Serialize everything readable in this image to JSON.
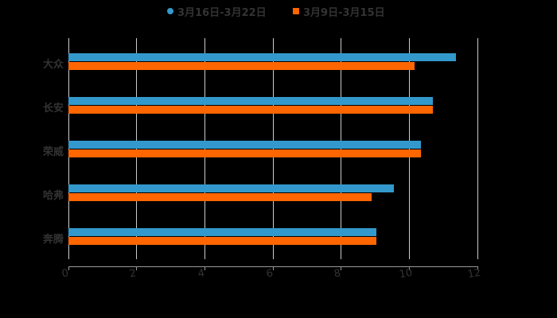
{
  "chart_data": {
    "type": "bar",
    "orientation": "horizontal",
    "title": "",
    "xlabel": "",
    "ylabel": "",
    "categories": [
      "大众",
      "长安",
      "荣威",
      "哈弗",
      "奔腾"
    ],
    "series": [
      {
        "name": "3月16日-3月22日",
        "color": "#3399CC",
        "values": [
          11.38,
          10.7,
          10.35,
          9.56,
          9.04
        ]
      },
      {
        "name": "3月9日-3月15日",
        "color": "#FF6600",
        "values": [
          10.16,
          10.7,
          10.35,
          8.9,
          9.04
        ]
      }
    ],
    "xlim": [
      0,
      12
    ],
    "xticks": [
      "0",
      "2",
      "4",
      "6",
      "8",
      "10",
      "12"
    ],
    "grid": true,
    "legend_position": "top"
  },
  "legend": {
    "items": [
      {
        "label": "3月16日-3月22日",
        "color": "#3399CC",
        "marker": "circle"
      },
      {
        "label": "3月9日-3月15日",
        "color": "#FF6600",
        "marker": "square"
      }
    ]
  }
}
